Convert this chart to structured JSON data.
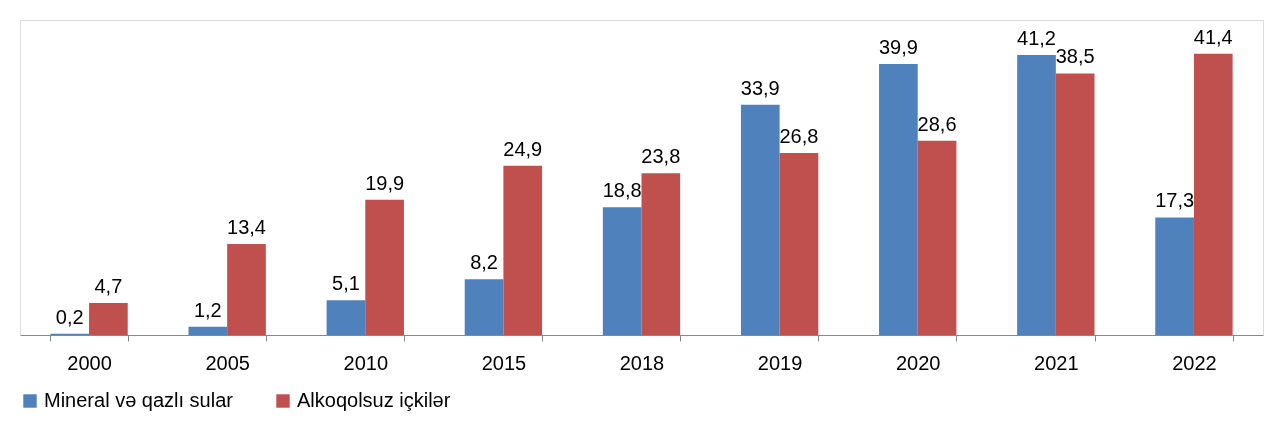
{
  "chart_data": {
    "type": "bar",
    "categories": [
      "2000",
      "2005",
      "2010",
      "2015",
      "2018",
      "2019",
      "2020",
      "2021",
      "2022"
    ],
    "series": [
      {
        "name": "Mineral və qazlı sular",
        "color": "#4f81bd",
        "values": [
          0.2,
          1.2,
          5.1,
          8.2,
          18.8,
          33.9,
          39.9,
          41.2,
          17.3
        ],
        "value_labels": [
          "0,2",
          "1,2",
          "5,1",
          "8,2",
          "18,8",
          "33,9",
          "39,9",
          "41,2",
          "17,3"
        ]
      },
      {
        "name": "Alkoqolsuz içkilər",
        "color": "#c0504d",
        "values": [
          4.7,
          13.4,
          19.9,
          24.9,
          23.8,
          26.8,
          28.6,
          38.5,
          41.4
        ],
        "value_labels": [
          "4,7",
          "13,4",
          "19,9",
          "24,9",
          "23,8",
          "26,8",
          "28,6",
          "38,5",
          "41,4"
        ]
      }
    ],
    "legend": "bottom",
    "grid": false
  }
}
